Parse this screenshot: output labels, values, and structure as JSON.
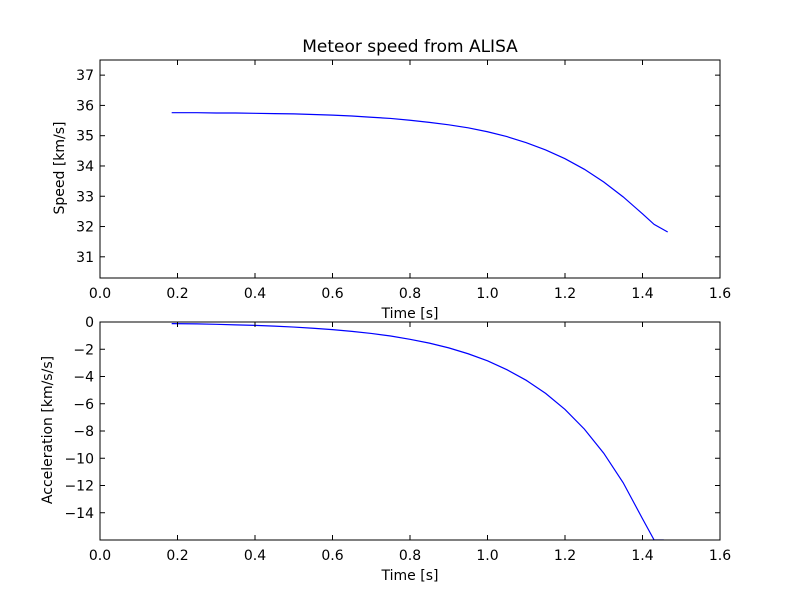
{
  "chart_data": [
    {
      "type": "line",
      "title": "Meteor speed from  ALISA",
      "xlabel": "Time [s]",
      "ylabel": "Speed [km/s]",
      "xlim": [
        0.0,
        1.6
      ],
      "ylim": [
        30.3,
        37.5
      ],
      "xticks": [
        "0.0",
        "0.2",
        "0.4",
        "0.6",
        "0.8",
        "1.0",
        "1.2",
        "1.4",
        "1.6"
      ],
      "yticks": [
        "31",
        "32",
        "33",
        "34",
        "35",
        "36",
        "37"
      ],
      "grid": false,
      "series": [
        {
          "color": "#0000ff",
          "x": [
            0.185,
            0.25,
            0.3,
            0.35,
            0.4,
            0.45,
            0.5,
            0.55,
            0.6,
            0.65,
            0.7,
            0.75,
            0.8,
            0.85,
            0.9,
            0.95,
            1.0,
            1.05,
            1.1,
            1.15,
            1.2,
            1.25,
            1.3,
            1.35,
            1.4,
            1.43,
            1.465
          ],
          "y": [
            35.76,
            35.76,
            35.75,
            35.75,
            35.74,
            35.73,
            35.72,
            35.7,
            35.68,
            35.65,
            35.61,
            35.57,
            35.51,
            35.44,
            35.36,
            35.26,
            35.13,
            34.97,
            34.77,
            34.53,
            34.24,
            33.89,
            33.47,
            32.98,
            32.42,
            32.07,
            31.82
          ]
        }
      ]
    },
    {
      "type": "line",
      "title": "",
      "xlabel": "Time [s]",
      "ylabel": "Acceleration [km/s/s]",
      "xlim": [
        0.0,
        1.6
      ],
      "ylim": [
        -16.0,
        0.0
      ],
      "xticks": [
        "0.0",
        "0.2",
        "0.4",
        "0.6",
        "0.8",
        "1.0",
        "1.2",
        "1.4",
        "1.6"
      ],
      "yticks": [
        "0",
        "−2",
        "−4",
        "−6",
        "−8",
        "−10",
        "−12",
        "−14"
      ],
      "grid": false,
      "series": [
        {
          "color": "#0000ff",
          "x": [
            0.185,
            0.25,
            0.3,
            0.35,
            0.4,
            0.45,
            0.5,
            0.55,
            0.6,
            0.65,
            0.7,
            0.75,
            0.8,
            0.85,
            0.9,
            0.95,
            1.0,
            1.05,
            1.1,
            1.15,
            1.2,
            1.25,
            1.3,
            1.35,
            1.4,
            1.43,
            1.455
          ],
          "y": [
            -0.12,
            -0.14,
            -0.17,
            -0.21,
            -0.25,
            -0.3,
            -0.37,
            -0.46,
            -0.56,
            -0.69,
            -0.84,
            -1.03,
            -1.27,
            -1.55,
            -1.9,
            -2.33,
            -2.85,
            -3.5,
            -4.28,
            -5.24,
            -6.42,
            -7.86,
            -9.63,
            -11.79,
            -14.44,
            -16.0,
            -16.0
          ]
        }
      ]
    }
  ]
}
